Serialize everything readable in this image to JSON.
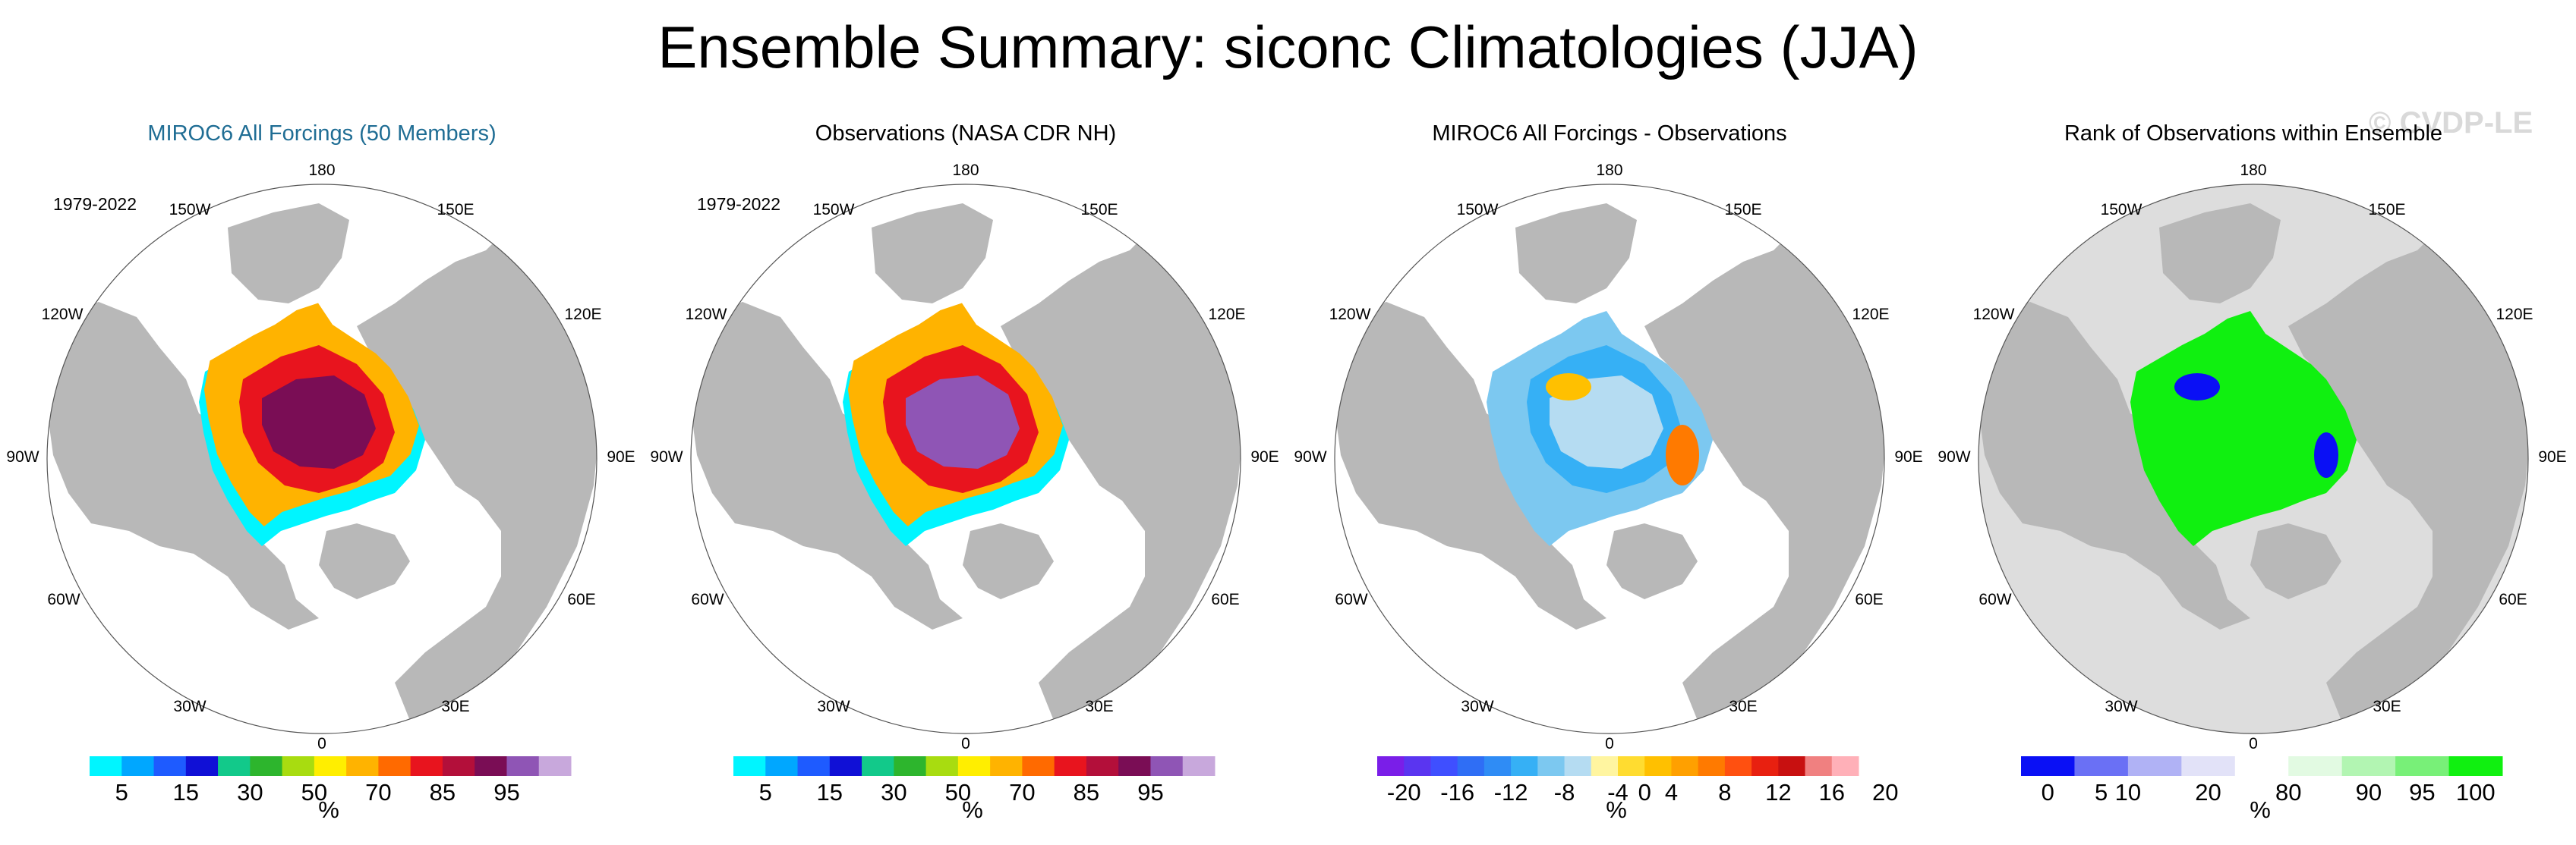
{
  "title": "Ensemble Summary: siconc Climatologies (JJA)",
  "watermark": "© CVDP-LE",
  "lon_labels": [
    "180",
    "150W",
    "150E",
    "120W",
    "120E",
    "90W",
    "90E",
    "60W",
    "60E",
    "30W",
    "30E",
    "0"
  ],
  "panels": [
    {
      "title": "MIROC6 All Forcings (50 Members)",
      "title_color": "#1f6d94",
      "period": "1979-2022",
      "kind": "concentration",
      "colorbar": {
        "colors": [
          "#00f5ff",
          "#00a7ff",
          "#1e5bff",
          "#1010d6",
          "#12c98a",
          "#2db52d",
          "#a8dc10",
          "#ffee00",
          "#ffb300",
          "#ff6a00",
          "#e8141e",
          "#b30f3a",
          "#7a0d55",
          "#8f55b5",
          "#c8a8dc"
        ],
        "labels": [
          "5",
          "15",
          "30",
          "50",
          "70",
          "85",
          "95"
        ],
        "label_boundaries": [
          1,
          3,
          5,
          7,
          9,
          11,
          13
        ]
      },
      "unit": "%"
    },
    {
      "title": "Observations (NASA CDR NH)",
      "title_color": "#000000",
      "period": "1979-2022",
      "kind": "concentration",
      "colorbar": {
        "colors": [
          "#00f5ff",
          "#00a7ff",
          "#1e5bff",
          "#1010d6",
          "#12c98a",
          "#2db52d",
          "#a8dc10",
          "#ffee00",
          "#ffb300",
          "#ff6a00",
          "#e8141e",
          "#b30f3a",
          "#7a0d55",
          "#8f55b5",
          "#c8a8dc"
        ],
        "labels": [
          "5",
          "15",
          "30",
          "50",
          "70",
          "85",
          "95"
        ],
        "label_boundaries": [
          1,
          3,
          5,
          7,
          9,
          11,
          13
        ]
      },
      "unit": "%"
    },
    {
      "title": "MIROC6 All Forcings - Observations",
      "title_color": "#000000",
      "period": "",
      "kind": "difference",
      "colorbar": {
        "colors": [
          "#7a1ee8",
          "#5a35f0",
          "#3f4fff",
          "#2f6ef5",
          "#2f8cf5",
          "#36b0f5",
          "#7cc8f0",
          "#b5dcf2",
          "#fff5a0",
          "#ffdc30",
          "#ffc000",
          "#ffa000",
          "#ff7a00",
          "#ff5010",
          "#e82010",
          "#c81010",
          "#f08080",
          "#ffb0b8"
        ],
        "labels": [
          "-20",
          "-16",
          "-12",
          "-8",
          "-4",
          "0",
          "4",
          "8",
          "12",
          "16",
          "20"
        ],
        "label_boundaries": [
          1,
          3,
          5,
          7,
          9,
          10,
          11,
          13,
          15,
          17,
          19
        ]
      },
      "unit": "%"
    },
    {
      "title": "Rank of Observations within Ensemble",
      "title_color": "#000000",
      "period": "",
      "kind": "rank",
      "colorbar": {
        "colors": [
          "#0a10f5",
          "#6a70f5",
          "#b0b2f5",
          "#e2e2f8",
          "#ffffff",
          "#e2fae2",
          "#b2f5b2",
          "#78f078",
          "#10f010"
        ],
        "labels": [
          "0",
          "5",
          "10",
          "20",
          "80",
          "90",
          "95",
          "100"
        ],
        "label_boundaries": [
          0.5,
          1.5,
          2,
          3.5,
          5,
          6.5,
          7.5,
          8.5
        ]
      },
      "unit": "%"
    }
  ]
}
